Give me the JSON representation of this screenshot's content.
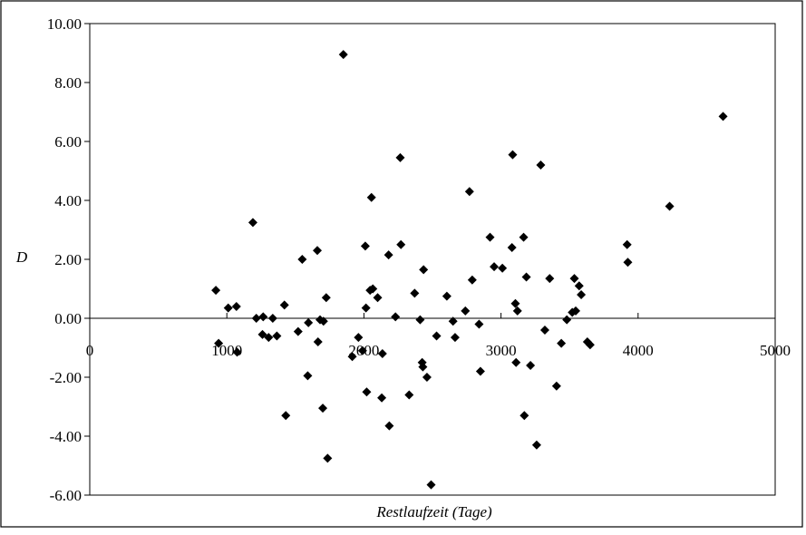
{
  "chart_data": {
    "type": "scatter",
    "title": "",
    "xlabel": "Restlaufzeit (Tage)",
    "ylabel": "D",
    "xlim": [
      0,
      5000
    ],
    "ylim": [
      -6,
      10
    ],
    "x_ticks": [
      0,
      1000,
      2000,
      3000,
      4000,
      5000
    ],
    "x_tick_labels": [
      "0",
      "1000",
      "2000",
      "3000",
      "4000",
      "5000"
    ],
    "y_ticks": [
      -6,
      -4,
      -2,
      0,
      2,
      4,
      6,
      8,
      10
    ],
    "y_tick_labels": [
      "-6.00",
      "-4.00",
      "-2.00",
      "0.00",
      "2.00",
      "4.00",
      "6.00",
      "8.00",
      "10.00"
    ],
    "grid": false,
    "legend": "none",
    "marker": "diamond",
    "marker_color": "#000000",
    "series": [
      {
        "points": [
          [
            920,
            0.95
          ],
          [
            940,
            -0.85
          ],
          [
            1010,
            0.35
          ],
          [
            1070,
            0.4
          ],
          [
            1075,
            -1.15
          ],
          [
            1190,
            3.25
          ],
          [
            1215,
            0.0
          ],
          [
            1260,
            -0.55
          ],
          [
            1265,
            0.05
          ],
          [
            1305,
            -0.65
          ],
          [
            1335,
            0.0
          ],
          [
            1365,
            -0.6
          ],
          [
            1420,
            0.45
          ],
          [
            1430,
            -3.3
          ],
          [
            1520,
            -0.45
          ],
          [
            1550,
            2.0
          ],
          [
            1590,
            -1.95
          ],
          [
            1595,
            -0.15
          ],
          [
            1660,
            2.3
          ],
          [
            1665,
            -0.8
          ],
          [
            1680,
            -0.05
          ],
          [
            1700,
            -3.05
          ],
          [
            1705,
            -0.1
          ],
          [
            1725,
            0.7
          ],
          [
            1735,
            -4.75
          ],
          [
            1850,
            8.95
          ],
          [
            1915,
            -1.3
          ],
          [
            1960,
            -0.65
          ],
          [
            1990,
            -1.1
          ],
          [
            2010,
            2.45
          ],
          [
            2015,
            0.35
          ],
          [
            2020,
            -2.5
          ],
          [
            2045,
            0.95
          ],
          [
            2055,
            4.1
          ],
          [
            2065,
            1.0
          ],
          [
            2100,
            0.7
          ],
          [
            2130,
            -2.7
          ],
          [
            2135,
            -1.2
          ],
          [
            2180,
            2.15
          ],
          [
            2185,
            -3.65
          ],
          [
            2230,
            0.05
          ],
          [
            2265,
            5.45
          ],
          [
            2270,
            2.5
          ],
          [
            2330,
            -2.6
          ],
          [
            2370,
            0.85
          ],
          [
            2410,
            -0.05
          ],
          [
            2425,
            -1.5
          ],
          [
            2430,
            -1.65
          ],
          [
            2435,
            1.65
          ],
          [
            2460,
            -2.0
          ],
          [
            2490,
            -5.65
          ],
          [
            2530,
            -0.6
          ],
          [
            2605,
            0.75
          ],
          [
            2650,
            -0.1
          ],
          [
            2665,
            -0.65
          ],
          [
            2740,
            0.25
          ],
          [
            2770,
            4.3
          ],
          [
            2790,
            1.3
          ],
          [
            2840,
            -0.2
          ],
          [
            2850,
            -1.8
          ],
          [
            2920,
            2.75
          ],
          [
            2950,
            1.75
          ],
          [
            3010,
            1.7
          ],
          [
            3080,
            2.4
          ],
          [
            3085,
            5.55
          ],
          [
            3105,
            0.5
          ],
          [
            3110,
            -1.5
          ],
          [
            3120,
            0.25
          ],
          [
            3165,
            2.75
          ],
          [
            3170,
            -3.3
          ],
          [
            3185,
            1.4
          ],
          [
            3215,
            -1.6
          ],
          [
            3260,
            -4.3
          ],
          [
            3290,
            5.2
          ],
          [
            3320,
            -0.4
          ],
          [
            3355,
            1.35
          ],
          [
            3405,
            -2.3
          ],
          [
            3440,
            -0.85
          ],
          [
            3480,
            -0.05
          ],
          [
            3520,
            0.2
          ],
          [
            3535,
            1.35
          ],
          [
            3545,
            0.25
          ],
          [
            3570,
            1.1
          ],
          [
            3585,
            0.8
          ],
          [
            3630,
            -0.8
          ],
          [
            3650,
            -0.9
          ],
          [
            3920,
            2.5
          ],
          [
            3925,
            1.9
          ],
          [
            4230,
            3.8
          ],
          [
            4620,
            6.85
          ]
        ]
      }
    ]
  }
}
